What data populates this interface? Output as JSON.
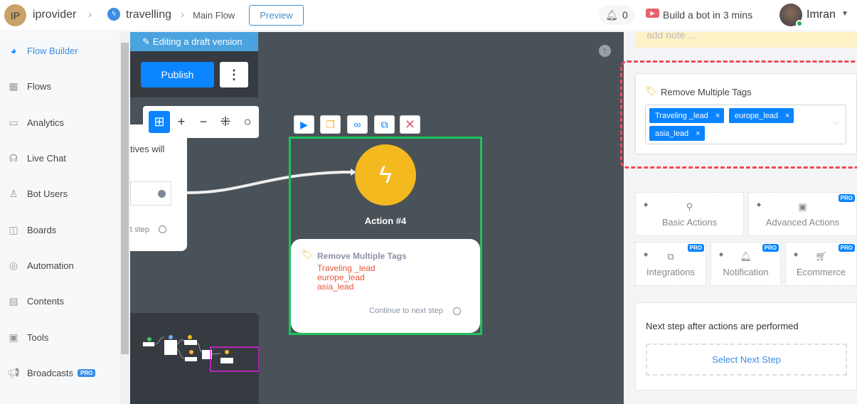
{
  "header": {
    "workspace_initials": "IP",
    "workspace": "iprovider",
    "bot": "travelling",
    "flow": "Main Flow",
    "preview": "Preview",
    "notif_count": "0",
    "build_link": "Build a bot in 3 mins",
    "user": "Imran"
  },
  "sidebar": {
    "items": [
      {
        "label": "Flow Builder",
        "icon": "messenger-icon",
        "active": true
      },
      {
        "label": "Flows",
        "icon": "grid-icon"
      },
      {
        "label": "Analytics",
        "icon": "presentation-icon"
      },
      {
        "label": "Live Chat",
        "icon": "headset-icon"
      },
      {
        "label": "Bot Users",
        "icon": "user-icon"
      },
      {
        "label": "Boards",
        "icon": "board-icon"
      },
      {
        "label": "Automation",
        "icon": "automation-icon"
      },
      {
        "label": "Contents",
        "icon": "contents-icon"
      },
      {
        "label": "Tools",
        "icon": "tools-icon"
      },
      {
        "label": "Broadcasts",
        "icon": "megaphone-icon",
        "badge": "PRO"
      }
    ]
  },
  "canvas": {
    "draft_banner": "Editing a draft version",
    "publish": "Publish",
    "left_node_text": "tives will",
    "left_node_step": "t step",
    "node": {
      "title": "Action #4",
      "action": "Remove Multiple Tags",
      "tags": [
        "Traveling _lead",
        "europe_lead",
        "asia_lead"
      ],
      "continue": "Continue to next step"
    }
  },
  "panel": {
    "note_placeholder": "add note ...",
    "action_title": "Remove Multiple Tags",
    "tags": [
      "Traveling _lead",
      "europe_lead",
      "asia_lead"
    ],
    "categories": [
      {
        "label": "Basic Actions",
        "pro": false
      },
      {
        "label": "Advanced Actions",
        "pro": true
      },
      {
        "label": "Integrations",
        "pro": true
      },
      {
        "label": "Notification",
        "pro": true
      },
      {
        "label": "Ecommerce",
        "pro": true
      }
    ],
    "pro_badge": "PRO",
    "next_step_label": "Next step after actions are performed",
    "select_next": "Select Next Step"
  },
  "colors": {
    "accent": "#0a84ff",
    "selected": "#1ec35c",
    "action": "#f5b920",
    "tag_text": "#e8553a",
    "dashed": "#ef4a57"
  }
}
